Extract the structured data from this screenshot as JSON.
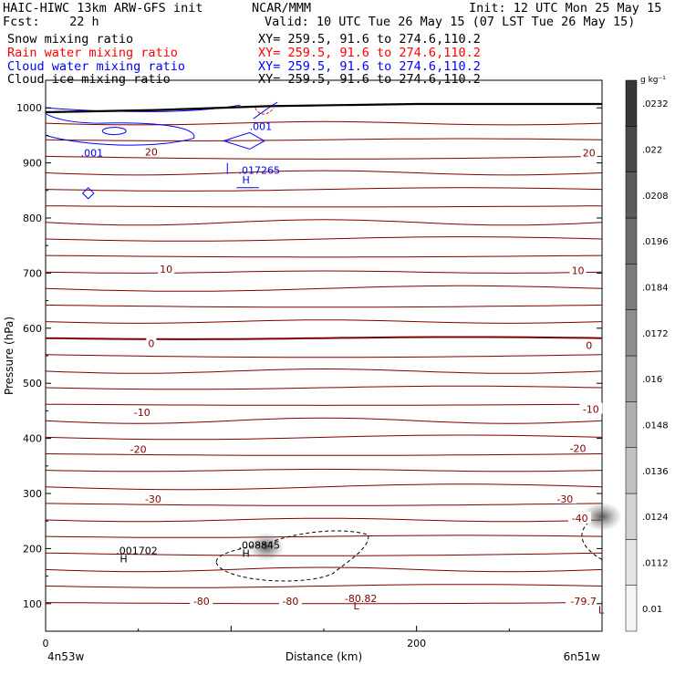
{
  "header": {
    "model": "HAIC-HIWC 13km ARW-GFS init",
    "org": "NCAR/MMM",
    "init": "Init: 12 UTC Mon 25 May 15",
    "fcst": "Fcst:    22 h",
    "valid": "Valid: 10 UTC Tue 26 May 15 (07 LST Tue 26 May 15)"
  },
  "fields": [
    {
      "name": "Snow mixing ratio",
      "xy": "XY= 259.5, 91.6 to 274.6,110.2",
      "color": "#000000"
    },
    {
      "name": "Rain water mixing ratio",
      "xy": "XY= 259.5, 91.6 to 274.6,110.2",
      "color": "#ff0000"
    },
    {
      "name": "Cloud water mixing ratio",
      "xy": "XY= 259.5, 91.6 to 274.6,110.2",
      "color": "#0000ff"
    },
    {
      "name": "Cloud ice mixing ratio",
      "xy": "XY= 259.5, 91.6 to 274.6,110.2",
      "color": "#000000"
    }
  ],
  "chart_data": {
    "type": "cross-section",
    "xlabel": "Distance (km)",
    "ylabel": "Pressure (hPa)",
    "xlim": [
      0,
      300
    ],
    "ylim": [
      1050,
      50
    ],
    "x_ticks": [
      0,
      200
    ],
    "y_ticks": [
      100,
      200,
      300,
      400,
      500,
      600,
      700,
      800,
      900,
      1000
    ],
    "x_start_label": "4n53w",
    "x_end_label": "6n51w",
    "colorbar": {
      "units": "g kg⁻¹",
      "levels": [
        "0.01",
        ".0112",
        ".0124",
        ".0136",
        ".0148",
        ".016",
        ".0172",
        ".0184",
        ".0196",
        ".0208",
        ".022",
        ".0232"
      ]
    },
    "temperature_contour_color": "#800000",
    "temperature_labels": [
      {
        "text": "-80",
        "x": 84,
        "p": 105
      },
      {
        "text": "-80",
        "x": 132,
        "p": 105
      },
      {
        "text": "-80.82",
        "x": 170,
        "p": 110
      },
      {
        "text": "-79.7",
        "x": 290,
        "p": 105
      },
      {
        "text": "-40",
        "x": 288,
        "p": 255
      },
      {
        "text": "-30",
        "x": 58,
        "p": 290
      },
      {
        "text": "-30",
        "x": 280,
        "p": 290
      },
      {
        "text": "-20",
        "x": 50,
        "p": 380
      },
      {
        "text": "-20",
        "x": 287,
        "p": 382
      },
      {
        "text": "-10",
        "x": 52,
        "p": 447
      },
      {
        "text": "-10",
        "x": 294,
        "p": 453
      },
      {
        "text": "0",
        "x": 57,
        "p": 572
      },
      {
        "text": "0",
        "x": 293,
        "p": 569
      },
      {
        "text": "10",
        "x": 65,
        "p": 707
      },
      {
        "text": "10",
        "x": 287,
        "p": 705
      },
      {
        "text": "20",
        "x": 57,
        "p": 920
      },
      {
        "text": "20",
        "x": 293,
        "p": 918
      }
    ],
    "extrema_labels": [
      {
        "text": "L",
        "x": 166,
        "p": 90,
        "color": "#800000"
      },
      {
        "text": "L",
        "x": 298,
        "p": 82,
        "color": "#800000"
      },
      {
        "text": "H",
        "x": 40,
        "p": 175,
        "color": "#000000"
      },
      {
        "text": ".001702",
        "x": 38,
        "p": 190,
        "color": "#000000"
      },
      {
        "text": "H",
        "x": 106,
        "p": 185,
        "color": "#000000"
      },
      {
        "text": ".008845",
        "x": 104,
        "p": 200,
        "color": "#000000"
      },
      {
        "text": "H",
        "x": 106,
        "p": 863,
        "color": "#0000ff"
      },
      {
        "text": ".017265",
        "x": 104,
        "p": 880,
        "color": "#0000ff"
      },
      {
        "text": ".001",
        "x": 19,
        "p": 912,
        "color": "#0000ff"
      },
      {
        "text": ".001",
        "x": 110,
        "p": 960,
        "color": "#0000ff"
      }
    ]
  }
}
